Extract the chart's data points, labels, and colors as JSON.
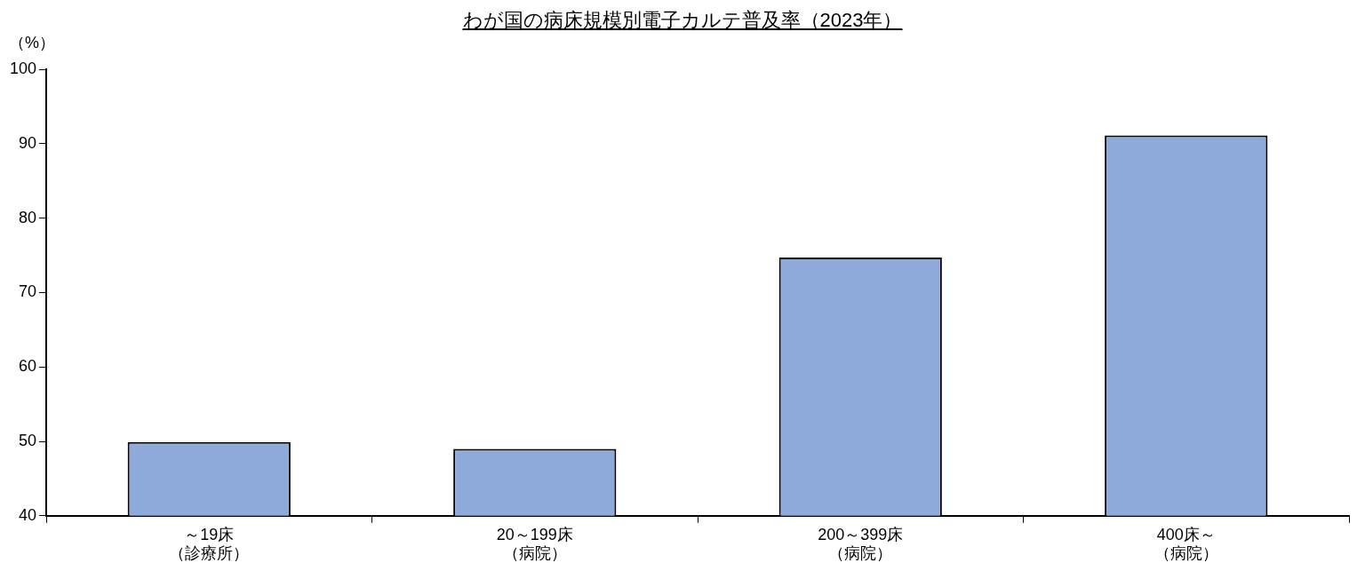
{
  "chart_data": {
    "type": "bar",
    "title": "わが国の病床規模別電子カルテ普及率（2023年）",
    "ylabel": "（%）",
    "categories": [
      "～19床（診療所）",
      "20～199床（病院）",
      "200～399床（病院）",
      "400床～（病院）"
    ],
    "values": [
      49.9,
      49.0,
      74.7,
      91.1
    ],
    "color": "#8eaadb",
    "ylim": [
      40,
      100
    ],
    "yticks": [
      40,
      50,
      60,
      70,
      80,
      90,
      100
    ],
    "grid": false,
    "legend": false
  }
}
